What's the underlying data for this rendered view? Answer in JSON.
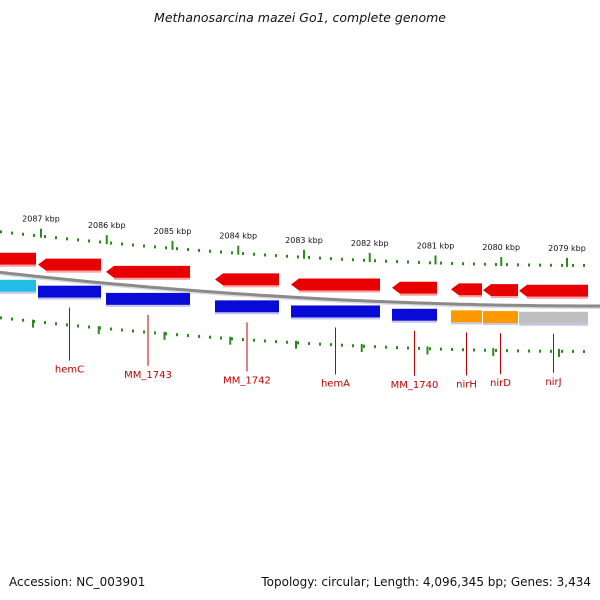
{
  "map": {
    "title": "Methanosarcina mazei Go1, complete genome",
    "accession": "Accession: NC_003901",
    "summary": "Topology: circular; Length: 4,096,345 bp; Genes: 3,434"
  },
  "ticks": [
    {
      "label": "2087 kbp",
      "kbp": 2087
    },
    {
      "label": "2086 kbp",
      "kbp": 2086
    },
    {
      "label": "2085 kbp",
      "kbp": 2085
    },
    {
      "label": "2084 kbp",
      "kbp": 2084
    },
    {
      "label": "2083 kbp",
      "kbp": 2083
    },
    {
      "label": "2082 kbp",
      "kbp": 2082
    },
    {
      "label": "2081 kbp",
      "kbp": 2081
    },
    {
      "label": "2080 kbp",
      "kbp": 2080
    },
    {
      "label": "2079 kbp",
      "kbp": 2079
    }
  ],
  "genes": [
    {
      "label": "",
      "fill": "#e80000",
      "band": "#22bde6"
    },
    {
      "label": "hemC",
      "fill": "#e80000",
      "band": "#0a0ad8"
    },
    {
      "label": "MM_1743",
      "fill": "#e80000",
      "band": "#0a0ad8"
    },
    {
      "label": "MM_1742",
      "fill": "#e80000",
      "band": "#0a0ad8"
    },
    {
      "label": "hemA",
      "fill": "#e80000",
      "band": "#0a0ad8"
    },
    {
      "label": "MM_1740",
      "fill": "#e80000",
      "band": "#0a0ad8"
    },
    {
      "label": "nirH",
      "fill": "#e80000",
      "band": "#ff9900"
    },
    {
      "label": "nirD",
      "fill": "#e80000",
      "band": "#ff9900"
    },
    {
      "label": "nirJ",
      "fill": "#e80000",
      "band": "#c0c0c0"
    }
  ],
  "colors": {
    "backbone": "#8a8a8a",
    "tick": "#2a8a1a",
    "gene_label": "#c00000",
    "strand": "#e80000"
  }
}
